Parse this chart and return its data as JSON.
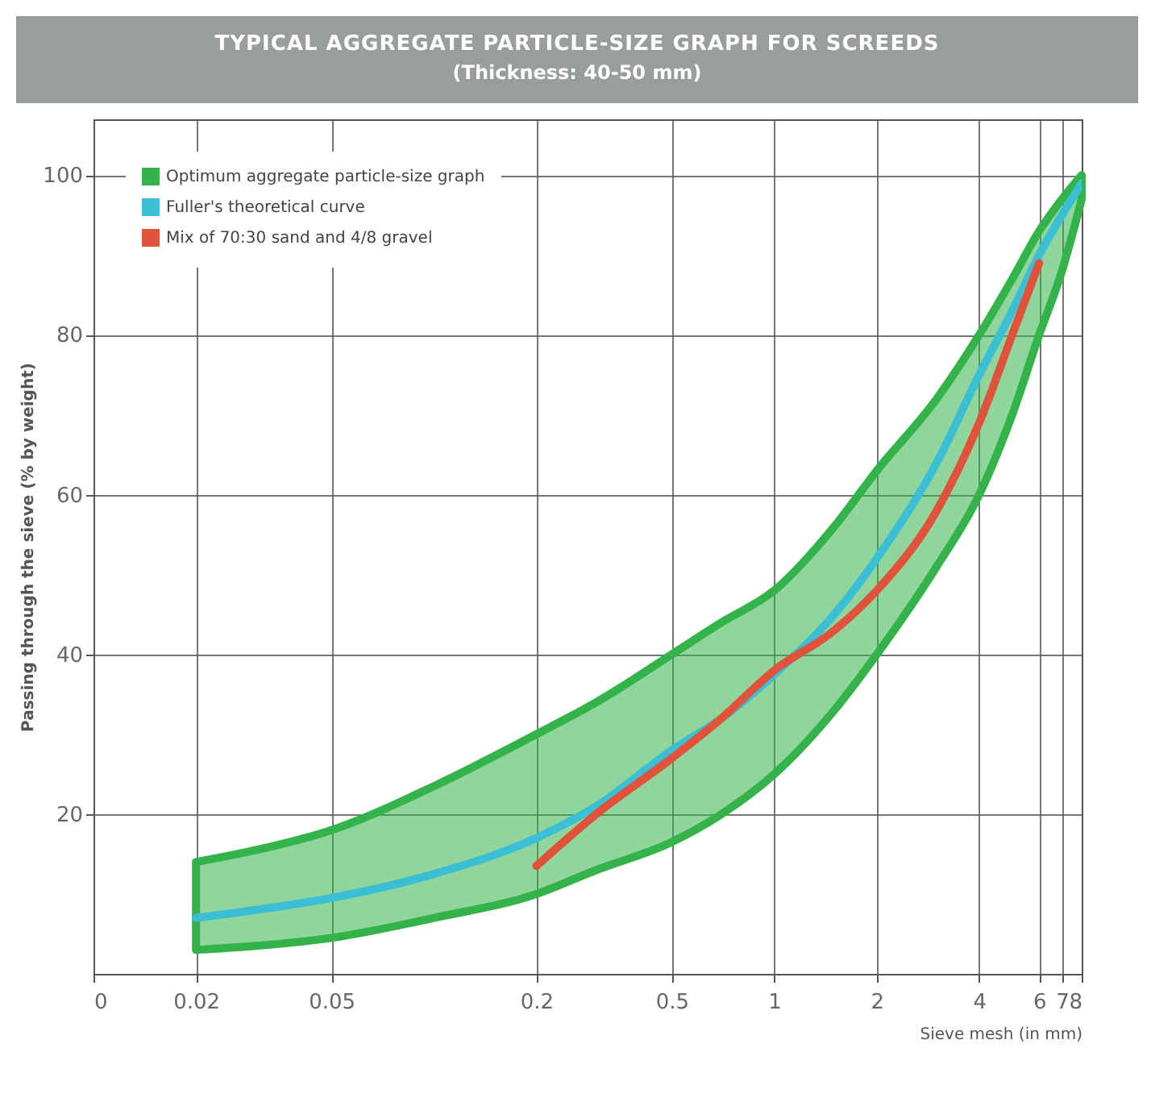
{
  "chart_data": {
    "type": "line",
    "title": "TYPICAL AGGREGATE PARTICLE-SIZE GRAPH FOR SCREEDS",
    "subtitle": "(Thickness: 40-50 mm)",
    "xlabel": "Sieve mesh (in mm)",
    "ylabel": "Passing through the sieve (% by weight)",
    "log": "x",
    "xlim": [
      0.01,
      8
    ],
    "xticks": [
      {
        "value": 0.01,
        "label": "0"
      },
      0.02,
      0.05,
      0.2,
      0.5,
      1,
      2,
      4,
      6,
      7,
      8
    ],
    "ylim": [
      0,
      107
    ],
    "yticks": [
      20,
      40,
      60,
      80,
      100
    ],
    "grid": true,
    "legend": "top left",
    "x": [
      0.02,
      0.03,
      0.05,
      0.1,
      0.2,
      0.3,
      0.5,
      0.7,
      1,
      1.5,
      2,
      3,
      4,
      5,
      6,
      7,
      8
    ],
    "series": [
      {
        "name": "Optimum aggregate particle-size graph",
        "type": "area",
        "color": "#33b34a",
        "values": [
          null,
          null,
          null,
          null,
          null,
          null,
          null,
          null,
          null,
          null,
          null,
          null,
          null,
          null,
          null,
          null,
          null
        ],
        "upper": [
          14,
          15.5,
          18,
          23.5,
          30,
          34,
          40,
          44,
          48,
          56,
          63,
          72,
          80,
          87,
          93,
          97,
          100
        ],
        "lower": [
          3,
          3.5,
          4.5,
          7,
          10,
          13,
          16.5,
          20,
          25,
          33,
          40,
          51,
          60,
          70,
          80,
          88,
          97
        ]
      },
      {
        "name": "Fuller's theoretical curve",
        "type": "line",
        "color": "#3bbfd4",
        "values": [
          7,
          8,
          9.5,
          12.5,
          17,
          21,
          28,
          32,
          37.5,
          45,
          52,
          64,
          75,
          83,
          90,
          95,
          99
        ]
      },
      {
        "name": "Mix of 70:30 sand and 4/8 gravel",
        "type": "line",
        "color": "#e0533a",
        "x": [
          0.2,
          0.3,
          0.5,
          0.7,
          1,
          1.5,
          2,
          3,
          4,
          5,
          6
        ],
        "values": [
          13.5,
          20,
          27,
          32,
          38,
          43,
          48,
          58,
          69,
          80,
          89
        ]
      }
    ]
  }
}
